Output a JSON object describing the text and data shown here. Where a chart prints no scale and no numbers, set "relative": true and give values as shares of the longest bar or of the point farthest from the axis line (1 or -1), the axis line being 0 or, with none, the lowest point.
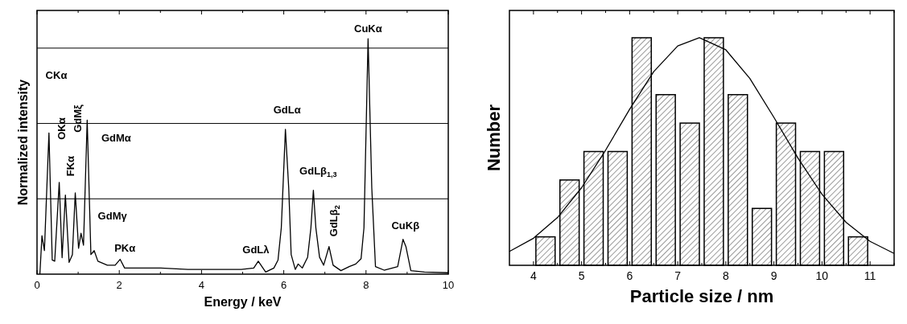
{
  "chart_data": [
    {
      "type": "line",
      "relative": true,
      "xlabel": "Energy / keV",
      "ylabel": "Normalized intensity",
      "xlim": [
        0,
        10
      ],
      "xticks": [
        0,
        {
          "value": 1,
          "label": null
        },
        2,
        {
          "value": 3,
          "label": null
        },
        4,
        {
          "value": 5,
          "label": null
        },
        6,
        {
          "value": 7,
          "label": null
        },
        8,
        {
          "value": 9,
          "label": null
        },
        10
      ],
      "series": [
        {
          "color": "#000000",
          "x": [
            0.07,
            0.12,
            0.18,
            0.29,
            0.37,
            0.43,
            0.54,
            0.61,
            0.69,
            0.78,
            0.86,
            0.93,
            1.01,
            1.07,
            1.13,
            1.22,
            1.31,
            1.39,
            1.48,
            1.71,
            1.9,
            2.02,
            2.13,
            2.36,
            3.01,
            3.67,
            4.32,
            4.97,
            5.27,
            5.38,
            5.56,
            5.76,
            5.86,
            5.94,
            6.04,
            6.12,
            6.18,
            6.28,
            6.35,
            6.45,
            6.58,
            6.66,
            6.72,
            6.78,
            6.87,
            6.97,
            7.1,
            7.2,
            7.39,
            7.59,
            7.75,
            7.88,
            7.95,
            8.05,
            8.14,
            8.23,
            8.44,
            8.77,
            8.9,
            8.97,
            9.09,
            9.42,
            10.0
          ],
          "values": [
            0,
            0.163,
            0.1,
            0.6,
            0.06,
            0.055,
            0.39,
            0.07,
            0.336,
            0.05,
            0.083,
            0.345,
            0.11,
            0.174,
            0.123,
            0.654,
            0.083,
            0.1,
            0.055,
            0.038,
            0.038,
            0.063,
            0.026,
            0.026,
            0.026,
            0.02,
            0.02,
            0.02,
            0.026,
            0.055,
            0.009,
            0.026,
            0.06,
            0.197,
            0.615,
            0.367,
            0.083,
            0.02,
            0.043,
            0.026,
            0.072,
            0.197,
            0.356,
            0.197,
            0.072,
            0.038,
            0.117,
            0.038,
            0.015,
            0.032,
            0.043,
            0.066,
            0.197,
            1.0,
            0.367,
            0.032,
            0.017,
            0.032,
            0.148,
            0.117,
            0.015,
            0.009,
            0.006
          ]
        }
      ],
      "ref_lines": [
        {
          "axis": "y",
          "value": 0.32,
          "color": "#000000"
        },
        {
          "axis": "y",
          "value": 0.64,
          "color": "#000000"
        },
        {
          "axis": "y",
          "value": 0.96,
          "color": "#000000"
        }
      ],
      "annotations": [
        "CKα",
        "OKα",
        {
          "text": "GdMξ",
          "x": 1.22,
          "y": 0.654
        },
        {
          "text": "FKα",
          "x": 0.69,
          "y": 0.336
        },
        {
          "text": "GdMα",
          "x": 1.22,
          "y": 0.654
        },
        {
          "text": "GdMγ",
          "x": 1.07,
          "y": 0.174
        },
        {
          "text": "PKα",
          "x": 2.02,
          "y": 0.063
        },
        {
          "text": "GdLλ",
          "x": 5.38,
          "y": 0.055
        },
        {
          "text": "GdLα",
          "x": 6.04,
          "y": 0.615
        },
        {
          "text": "GdLβ$_{1,3}$",
          "x": 6.72,
          "y": 0.356
        },
        {
          "text": "GdLβ$_{2}$",
          "x": 7.1,
          "y": 0.117
        },
        {
          "text": "CuKα",
          "x": 8.05,
          "y": 1.0
        },
        {
          "text": "CuKβ",
          "x": 8.9,
          "y": 0.148
        }
      ]
    },
    {
      "type": "bar",
      "relative": true,
      "xlabel": "Particle size / nm",
      "ylabel": "Number",
      "xlim": [
        3.5,
        11.5
      ],
      "xticks": [
        4,
        {
          "value": 4.5,
          "label": null
        },
        5,
        {
          "value": 5.5,
          "label": null
        },
        6,
        {
          "value": 6.5,
          "label": null
        },
        7,
        {
          "value": 7.5,
          "label": null
        },
        8,
        {
          "value": 8.5,
          "label": null
        },
        9,
        {
          "value": 9.5,
          "label": null
        },
        10,
        {
          "value": 10.5,
          "label": null
        },
        11,
        {
          "value": 11.5,
          "label": null
        }
      ],
      "series": [
        {
          "color": "#000000",
          "x": [
            4.25,
            4.75,
            5.25,
            5.75,
            6.25,
            6.75,
            7.25,
            7.75,
            8.25,
            8.75,
            9.25,
            9.75,
            10.25,
            10.75
          ],
          "values": [
            0.125,
            0.375,
            0.5,
            0.5,
            1,
            0.75,
            0.625,
            1,
            0.75,
            0.25,
            0.625,
            0.5,
            0.5,
            0.125
          ]
        },
        {
          "type": "line",
          "color": "#000000",
          "x": [
            3.5,
            4,
            4.5,
            5,
            5.5,
            6,
            6.5,
            7,
            7.45,
            8,
            8.5,
            9,
            9.5,
            10,
            10.5,
            11,
            11.5
          ],
          "values": [
            0.061,
            0.119,
            0.21,
            0.341,
            0.506,
            0.686,
            0.851,
            0.964,
            1,
            0.947,
            0.821,
            0.65,
            0.471,
            0.312,
            0.189,
            0.105,
            0.052
          ]
        }
      ]
    }
  ]
}
